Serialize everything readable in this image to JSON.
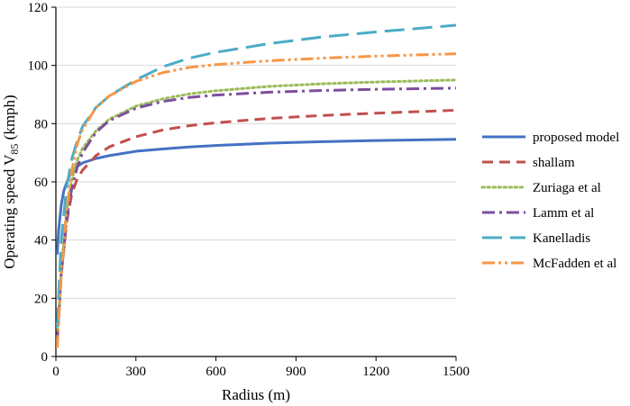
{
  "chart_data": {
    "type": "line",
    "xlabel": "Radius (m)",
    "ylabel_main": "Operating speed V",
    "ylabel_sub": "85",
    "ylabel_unit": " (kmph)",
    "xlim": [
      0,
      1500
    ],
    "ylim": [
      0,
      120
    ],
    "xticks": [
      0,
      300,
      600,
      900,
      1200,
      1500
    ],
    "yticks": [
      0,
      20,
      40,
      60,
      80,
      100,
      120
    ],
    "grid": "horizontal",
    "legend_position": "right",
    "series": [
      {
        "name": "proposed model",
        "color": "#4472C4",
        "dash": "solid",
        "points": [
          [
            5,
            35
          ],
          [
            10,
            43
          ],
          [
            20,
            52
          ],
          [
            30,
            57
          ],
          [
            50,
            62
          ],
          [
            75,
            65
          ],
          [
            100,
            66.5
          ],
          [
            150,
            68
          ],
          [
            200,
            69
          ],
          [
            300,
            70.5
          ],
          [
            400,
            71.3
          ],
          [
            500,
            72
          ],
          [
            600,
            72.5
          ],
          [
            800,
            73.3
          ],
          [
            1000,
            73.8
          ],
          [
            1200,
            74.2
          ],
          [
            1500,
            74.6
          ]
        ]
      },
      {
        "name": "shallam",
        "color": "#C0504D",
        "dash": "dashed",
        "points": [
          [
            5,
            5
          ],
          [
            20,
            28
          ],
          [
            40,
            46
          ],
          [
            60,
            56
          ],
          [
            80,
            61
          ],
          [
            100,
            64
          ],
          [
            150,
            69
          ],
          [
            200,
            72
          ],
          [
            300,
            75.5
          ],
          [
            400,
            77.8
          ],
          [
            500,
            79.3
          ],
          [
            600,
            80.3
          ],
          [
            800,
            81.8
          ],
          [
            1000,
            82.8
          ],
          [
            1200,
            83.6
          ],
          [
            1500,
            84.6
          ]
        ]
      },
      {
        "name": "Zuriaga et al",
        "color": "#9BBB59",
        "dash": "dotted",
        "points": [
          [
            5,
            5
          ],
          [
            20,
            30
          ],
          [
            40,
            50
          ],
          [
            60,
            61
          ],
          [
            80,
            67.5
          ],
          [
            100,
            71.5
          ],
          [
            150,
            77.5
          ],
          [
            200,
            81.5
          ],
          [
            300,
            86
          ],
          [
            400,
            88.5
          ],
          [
            500,
            90.2
          ],
          [
            600,
            91.3
          ],
          [
            800,
            92.8
          ],
          [
            1000,
            93.7
          ],
          [
            1200,
            94.3
          ],
          [
            1500,
            95
          ]
        ]
      },
      {
        "name": "Lamm et al",
        "color": "#7D4E9E",
        "dash": "dashdot",
        "points": [
          [
            5,
            5
          ],
          [
            20,
            28
          ],
          [
            40,
            47
          ],
          [
            60,
            58
          ],
          [
            80,
            65
          ],
          [
            100,
            70
          ],
          [
            150,
            77
          ],
          [
            200,
            81
          ],
          [
            300,
            85.3
          ],
          [
            400,
            87.6
          ],
          [
            500,
            89
          ],
          [
            600,
            89.8
          ],
          [
            800,
            90.8
          ],
          [
            1000,
            91.4
          ],
          [
            1200,
            91.8
          ],
          [
            1500,
            92.2
          ]
        ]
      },
      {
        "name": "Kanelladis",
        "color": "#4BACC6",
        "dash": "longdash",
        "points": [
          [
            5,
            10
          ],
          [
            20,
            40
          ],
          [
            40,
            58
          ],
          [
            60,
            68
          ],
          [
            80,
            74
          ],
          [
            100,
            79
          ],
          [
            150,
            85.5
          ],
          [
            200,
            89.5
          ],
          [
            300,
            95
          ],
          [
            400,
            99.5
          ],
          [
            500,
            102.5
          ],
          [
            600,
            104.5
          ],
          [
            800,
            107.5
          ],
          [
            1000,
            109.8
          ],
          [
            1200,
            111.5
          ],
          [
            1500,
            113.8
          ]
        ]
      },
      {
        "name": "McFadden et al",
        "color": "#F79646",
        "dash": "dashdotdot",
        "points": [
          [
            5,
            3
          ],
          [
            20,
            28
          ],
          [
            40,
            50
          ],
          [
            60,
            64
          ],
          [
            80,
            73
          ],
          [
            100,
            78
          ],
          [
            150,
            85.5
          ],
          [
            200,
            89.5
          ],
          [
            300,
            94.5
          ],
          [
            400,
            97.5
          ],
          [
            500,
            99.3
          ],
          [
            600,
            100.3
          ],
          [
            800,
            101.6
          ],
          [
            1000,
            102.5
          ],
          [
            1200,
            103.2
          ],
          [
            1500,
            104
          ]
        ]
      }
    ]
  }
}
